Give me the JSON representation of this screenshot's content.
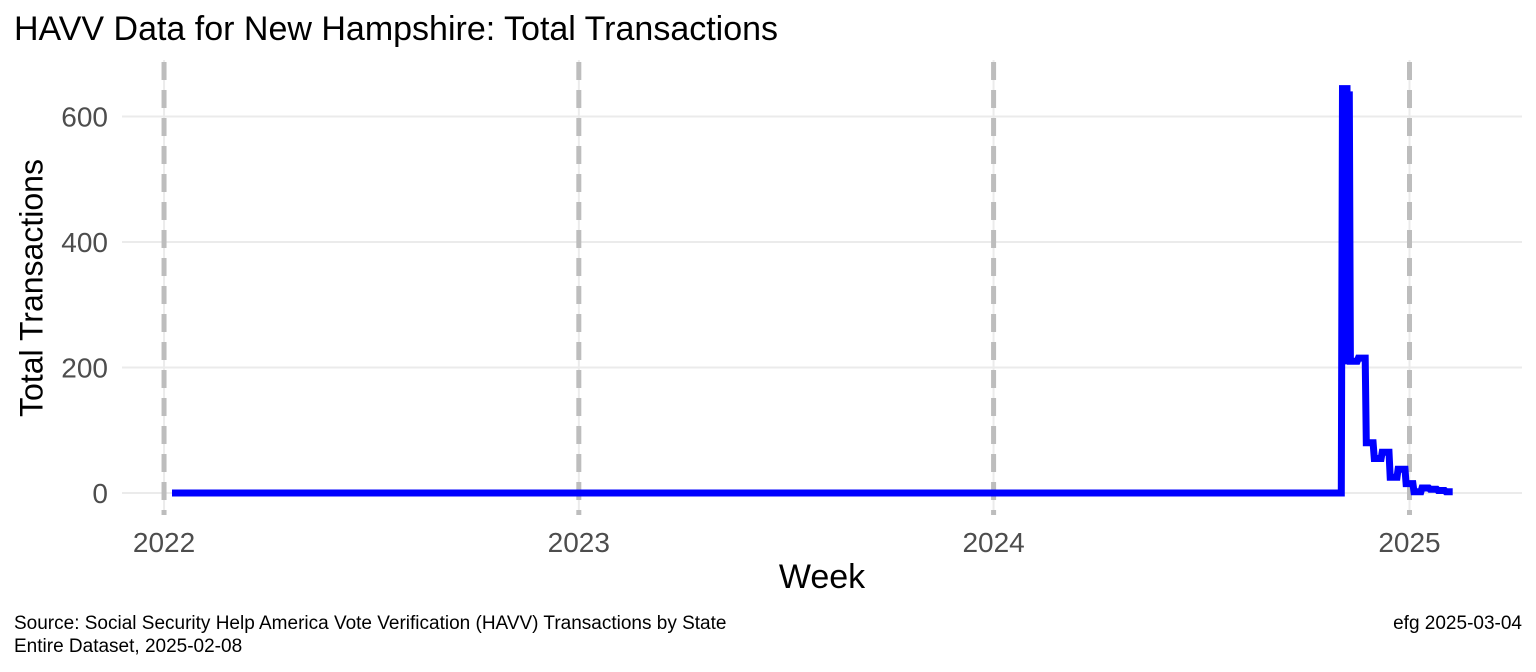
{
  "chart_data": {
    "type": "line",
    "title": "HAVV Data for New Hampshire:  Total Transactions",
    "xlabel": "Week",
    "ylabel": "Total Transactions",
    "x_ticks": [
      "2022",
      "2023",
      "2024",
      "2025"
    ],
    "y_ticks": [
      0,
      200,
      400,
      600
    ],
    "xlim": [
      "2021-11-25",
      "2025-04-10"
    ],
    "ylim": [
      -35,
      690
    ],
    "year_lines": [
      "2022-01-01",
      "2023-01-01",
      "2024-01-01",
      "2025-01-01"
    ],
    "grid": true,
    "legend": "none",
    "series_color": "#0000ff",
    "year_line_color": "#bdbdbd",
    "series": [
      {
        "x": [
          "2022-01-08",
          "2022-06-01",
          "2023-01-01",
          "2023-06-01",
          "2024-01-01",
          "2024-06-01",
          "2024-10-26",
          "2024-11-02",
          "2024-11-03",
          "2024-11-04",
          "2024-11-05",
          "2024-11-06",
          "2024-11-07",
          "2024-11-08",
          "2024-11-09",
          "2024-11-10",
          "2024-11-16",
          "2024-11-17",
          "2024-11-23",
          "2024-11-24",
          "2024-11-30",
          "2024-12-01",
          "2024-12-07",
          "2024-12-08",
          "2024-12-14",
          "2024-12-15",
          "2024-12-21",
          "2024-12-22",
          "2024-12-28",
          "2024-12-29",
          "2025-01-04",
          "2025-01-05",
          "2025-01-11",
          "2025-01-12",
          "2025-01-18",
          "2025-01-19",
          "2025-01-25",
          "2025-01-26",
          "2025-02-01",
          "2025-02-02",
          "2025-02-08"
        ],
        "y": [
          0,
          0,
          0,
          0,
          0,
          0,
          0,
          0,
          650,
          210,
          645,
          205,
          650,
          210,
          640,
          210,
          210,
          215,
          215,
          80,
          80,
          55,
          55,
          65,
          65,
          25,
          25,
          38,
          38,
          15,
          15,
          2,
          2,
          8,
          8,
          6,
          6,
          4,
          4,
          2,
          2
        ]
      }
    ]
  },
  "caption": {
    "source": "Source:  Social Security Help America Vote Verification (HAVV) Transactions by State",
    "dataset": "Entire Dataset, 2025-02-08",
    "credit": "efg 2025-03-04"
  }
}
